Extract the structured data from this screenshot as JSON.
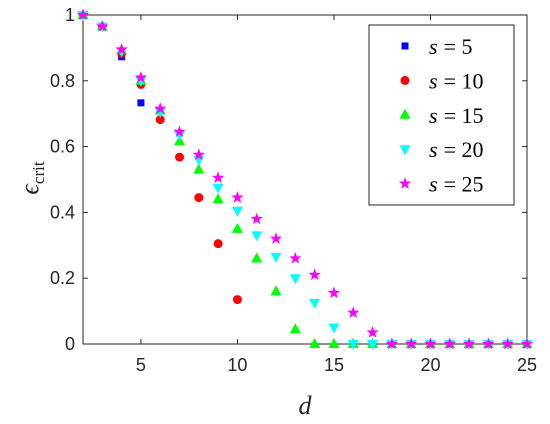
{
  "chart_data": {
    "type": "scatter",
    "title": "",
    "xlabel": "d",
    "ylabel": {
      "base": "ϵ",
      "sub": "crit"
    },
    "xlim": [
      2,
      25
    ],
    "ylim": [
      0,
      1
    ],
    "xticks": [
      5,
      10,
      15,
      20,
      25
    ],
    "xtick_labels": [
      "5",
      "10",
      "15",
      "20",
      "25"
    ],
    "yticks": [
      0,
      0.2,
      0.4,
      0.6,
      0.8,
      1
    ],
    "ytick_labels": [
      "0",
      "0.2",
      "0.4",
      "0.6",
      "0.8",
      "1"
    ],
    "grid": false,
    "legend_position": "top-right",
    "series": [
      {
        "name": "s = 5",
        "legend_var": "s",
        "legend_rhs": "= 5",
        "marker": "square",
        "color": "#0000ff",
        "x": [
          2,
          3,
          4,
          5
        ],
        "y": [
          1.0,
          0.965,
          0.873,
          0.733
        ]
      },
      {
        "name": "s = 10",
        "legend_var": "s",
        "legend_rhs": "= 10",
        "marker": "circle",
        "color": "#ff0000",
        "x": [
          2,
          3,
          4,
          5,
          6,
          7,
          8,
          9,
          10
        ],
        "y": [
          1.0,
          0.965,
          0.883,
          0.789,
          0.682,
          0.568,
          0.445,
          0.305,
          0.135
        ]
      },
      {
        "name": "s = 15",
        "legend_var": "s",
        "legend_rhs": "= 15",
        "marker": "triangle-up",
        "color": "#00ff00",
        "x": [
          2,
          3,
          4,
          5,
          6,
          7,
          8,
          9,
          10,
          11,
          12,
          13,
          14,
          15,
          16,
          17,
          18,
          19,
          20,
          21,
          22,
          23,
          24,
          25
        ],
        "y": [
          1.0,
          0.965,
          0.893,
          0.8,
          0.71,
          0.616,
          0.53,
          0.44,
          0.35,
          0.26,
          0.16,
          0.045,
          0,
          0,
          0,
          0,
          0,
          0,
          0,
          0,
          0,
          0,
          0,
          0
        ]
      },
      {
        "name": "s = 20",
        "legend_var": "s",
        "legend_rhs": "= 20",
        "marker": "triangle-down",
        "color": "#00ffff",
        "x": [
          2,
          3,
          4,
          5,
          6,
          7,
          8,
          9,
          10,
          11,
          12,
          13,
          14,
          15,
          16,
          17,
          18,
          19,
          20,
          21,
          22,
          23,
          24,
          25
        ],
        "y": [
          1.0,
          0.965,
          0.89,
          0.8,
          0.705,
          0.635,
          0.56,
          0.475,
          0.405,
          0.33,
          0.265,
          0.2,
          0.125,
          0.05,
          0,
          0,
          0,
          0,
          0,
          0,
          0,
          0,
          0,
          0
        ]
      },
      {
        "name": "s = 25",
        "legend_var": "s",
        "legend_rhs": "= 25",
        "marker": "star",
        "color": "#ff00ff",
        "x": [
          2,
          3,
          4,
          5,
          6,
          7,
          8,
          9,
          10,
          11,
          12,
          13,
          14,
          15,
          16,
          17,
          18,
          19,
          20,
          21,
          22,
          23,
          24,
          25
        ],
        "y": [
          1.0,
          0.965,
          0.895,
          0.81,
          0.715,
          0.645,
          0.575,
          0.505,
          0.445,
          0.38,
          0.32,
          0.26,
          0.21,
          0.155,
          0.095,
          0.035,
          0,
          0,
          0,
          0,
          0,
          0,
          0,
          0
        ]
      }
    ]
  }
}
